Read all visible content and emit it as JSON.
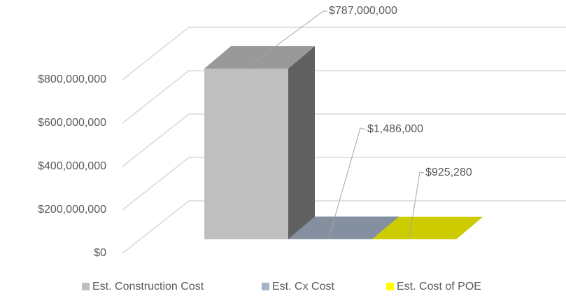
{
  "chart_data": {
    "type": "bar3d",
    "series": [
      {
        "name": "Est. Construction Cost",
        "color": "#bfbfbf",
        "values": [
          787000000
        ],
        "value_labels": [
          "$787,000,000"
        ]
      },
      {
        "name": "Est. Cx Cost",
        "color": "#a5b4c8",
        "values": [
          1486000
        ],
        "value_labels": [
          "$1,486,000"
        ]
      },
      {
        "name": "Est. Cost of POE",
        "color": "#ffff00",
        "values": [
          925280
        ],
        "value_labels": [
          "$925,280"
        ]
      }
    ],
    "ylim": [
      0,
      800000000
    ],
    "yticks": [
      {
        "value": 0,
        "label": "$0"
      },
      {
        "value": 200000000,
        "label": "$200,000,000"
      },
      {
        "value": 400000000,
        "label": "$400,000,000"
      },
      {
        "value": 600000000,
        "label": "$600,000,000"
      },
      {
        "value": 800000000,
        "label": "$800,000,000"
      }
    ],
    "grid": true,
    "legend": "bottom"
  }
}
